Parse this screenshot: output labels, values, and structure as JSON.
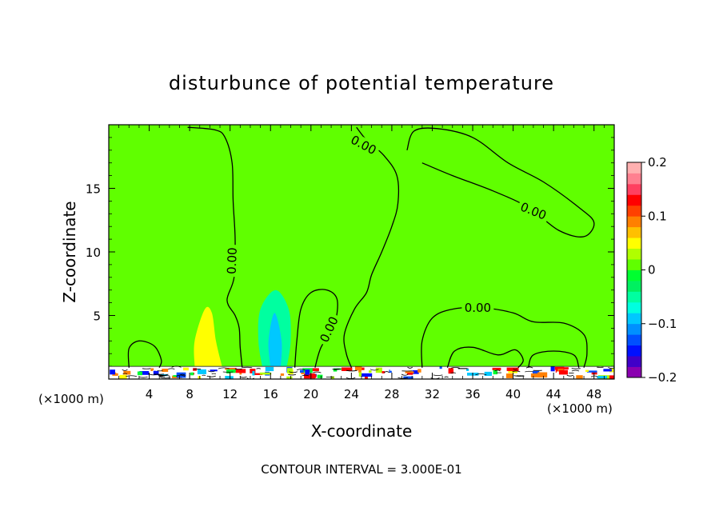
{
  "chart_data": {
    "type": "contour",
    "title": "disturbunce of potential temperature",
    "xlabel": "X-coordinate",
    "ylabel": "Z-coordinate",
    "x_unit_left": "(×1000 m)",
    "x_unit_right": "(×1000 m)",
    "footer": "CONTOUR INTERVAL = 3.000E-01",
    "xlim": [
      0,
      50
    ],
    "ylim": [
      0,
      20
    ],
    "x_ticks": [
      4,
      8,
      12,
      16,
      20,
      24,
      28,
      32,
      36,
      40,
      44,
      48
    ],
    "y_ticks": [
      5,
      10,
      15
    ],
    "contour_label": "0.00",
    "background_value": 0.02,
    "colorbar": {
      "min": -0.2,
      "max": 0.2,
      "tick_values": [
        0.2,
        0.1,
        0,
        -0.1,
        -0.2
      ],
      "tick_labels": [
        "0.2",
        "0.1",
        "0",
        "−0.1",
        "−0.2"
      ],
      "colors": [
        "#8a00b0",
        "#4000c8",
        "#0010ff",
        "#0050ff",
        "#0090ff",
        "#00c8ff",
        "#00ffe0",
        "#00ffa0",
        "#00f060",
        "#00ff30",
        "#60ff00",
        "#b0ff00",
        "#ffff00",
        "#ffc000",
        "#ff8000",
        "#ff4000",
        "#ff0000",
        "#ff4060",
        "#ff8090",
        "#ffb0b0"
      ]
    },
    "features": [
      {
        "name": "cool-plume-x16",
        "value": -0.06,
        "points": [
          [
            15.2,
            0.9
          ],
          [
            14.8,
            3
          ],
          [
            15,
            5.5
          ],
          [
            16.5,
            7
          ],
          [
            17.8,
            5.5
          ],
          [
            18,
            3
          ],
          [
            17.6,
            0.9
          ]
        ]
      },
      {
        "name": "cool-core-x16",
        "value": -0.09,
        "points": [
          [
            16,
            0.9
          ],
          [
            15.8,
            3
          ],
          [
            16.4,
            5.2
          ],
          [
            17.1,
            3
          ],
          [
            17,
            0.9
          ]
        ]
      },
      {
        "name": "warm-streak-x10",
        "value": 0.05,
        "points": [
          [
            8.5,
            1
          ],
          [
            8.5,
            3
          ],
          [
            9.5,
            5.5
          ],
          [
            10.2,
            5.2
          ],
          [
            10.6,
            3
          ],
          [
            11.2,
            1
          ]
        ]
      }
    ],
    "contours": [
      {
        "value": 0.0,
        "points": [
          [
            7.8,
            19.8
          ],
          [
            10.5,
            19.6
          ],
          [
            11.5,
            19
          ],
          [
            12.2,
            17
          ],
          [
            12.3,
            14
          ],
          [
            12.5,
            11
          ],
          [
            12.4,
            8
          ],
          [
            11.7,
            6.2
          ],
          [
            12.5,
            5
          ],
          [
            12.9,
            4
          ],
          [
            13,
            2.5
          ],
          [
            13.2,
            0.9
          ]
        ],
        "label_at": [
          12.2,
          9.3
        ],
        "label_angle": -88
      },
      {
        "value": 0.0,
        "points": [
          [
            24,
            0.9
          ],
          [
            23.5,
            2
          ],
          [
            23.3,
            3.5
          ],
          [
            24.3,
            5.5
          ],
          [
            25.5,
            6.8
          ],
          [
            26,
            8.2
          ],
          [
            27,
            10
          ],
          [
            28,
            12
          ],
          [
            28.6,
            13.8
          ],
          [
            28.5,
            16
          ],
          [
            27.2,
            17.6
          ],
          [
            25.5,
            18.8
          ],
          [
            24.5,
            19.8
          ]
        ],
        "label_at": [
          25.2,
          18.4
        ],
        "label_angle": 28
      },
      {
        "value": 0.0,
        "points": [
          [
            18.4,
            0.9
          ],
          [
            18.6,
            3
          ],
          [
            19,
            5.5
          ],
          [
            20,
            6.8
          ],
          [
            21.6,
            7
          ],
          [
            22.6,
            6.2
          ],
          [
            22.3,
            4.2
          ],
          [
            21,
            2.5
          ],
          [
            20.4,
            0.9
          ]
        ],
        "label_at": [
          21.8,
          3.9
        ],
        "label_angle": -65
      },
      {
        "value": 0.0,
        "points": [
          [
            29.5,
            18
          ],
          [
            30.2,
            19.5
          ],
          [
            32.5,
            19.7
          ],
          [
            36,
            19
          ],
          [
            39.5,
            17
          ],
          [
            43,
            15.5
          ],
          [
            46.5,
            13.5
          ],
          [
            48,
            12.3
          ],
          [
            47,
            11.2
          ],
          [
            44.5,
            11.7
          ],
          [
            41.5,
            13.5
          ],
          [
            38,
            14.8
          ],
          [
            34,
            16
          ],
          [
            31,
            17
          ]
        ],
        "label_at": [
          42,
          13.2
        ],
        "label_angle": 22
      },
      {
        "value": 0.0,
        "points": [
          [
            31,
            0.9
          ],
          [
            31,
            3
          ],
          [
            32,
            4.8
          ],
          [
            34,
            5.5
          ],
          [
            37,
            5.6
          ],
          [
            40,
            5.2
          ],
          [
            42,
            4.5
          ],
          [
            45,
            4.4
          ],
          [
            47,
            3.5
          ],
          [
            47.3,
            2
          ],
          [
            47,
            0.9
          ]
        ],
        "label_at": [
          36.5,
          5.6
        ],
        "label_angle": 0
      },
      {
        "value": 0.0,
        "points": [
          [
            2,
            0.9
          ],
          [
            2,
            2.4
          ],
          [
            3,
            3
          ],
          [
            4.5,
            2.6
          ],
          [
            5.2,
            1.5
          ],
          [
            5,
            0.9
          ]
        ],
        "label_at": null,
        "label_angle": 0
      },
      {
        "value": 0.0,
        "points": [
          [
            33.5,
            0.9
          ],
          [
            34.2,
            2.2
          ],
          [
            36,
            2.5
          ],
          [
            38.5,
            1.9
          ],
          [
            40.2,
            2.3
          ],
          [
            41,
            1.5
          ],
          [
            40.5,
            0.9
          ]
        ],
        "label_at": null,
        "label_angle": 0
      },
      {
        "value": 0.0,
        "points": [
          [
            41.5,
            0.9
          ],
          [
            42,
            1.9
          ],
          [
            44,
            2.2
          ],
          [
            46,
            1.9
          ],
          [
            46.5,
            0.9
          ]
        ],
        "label_at": null,
        "label_angle": 0
      }
    ]
  }
}
